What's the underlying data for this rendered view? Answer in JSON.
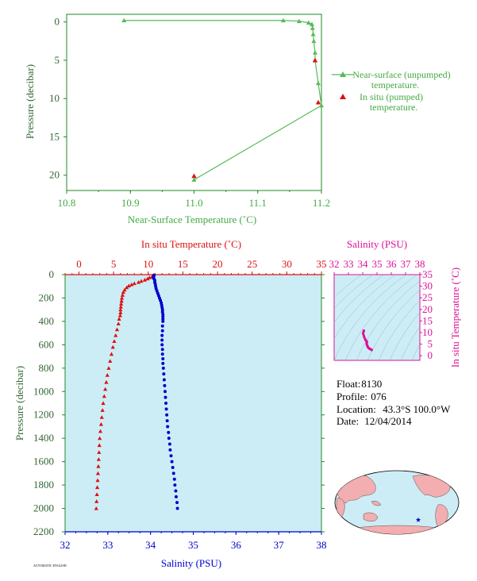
{
  "float_info": {
    "float_label": "Float:",
    "float_value": "8130",
    "profile_label": "Profile:",
    "profile_value": "076",
    "location_label": "Location:",
    "location_value": "43.3°S 100.0°W",
    "date_label": "Date:",
    "date_value": "12/04/2014"
  },
  "footer_note": "AUTOMATIC ENGLISH",
  "colors": {
    "green": "#55bb55",
    "green_text": "#44aa44",
    "red": "#dd1111",
    "blue": "#0000cc",
    "magenta": "#dd1199",
    "panel_bg": "#cdedf6",
    "axis": "#228822",
    "dark_green": "#336633"
  },
  "chart_data": [
    {
      "type": "line",
      "xlabel": "Near-Surface Temperature (˚C)",
      "ylabel": "Pressure (decibar)",
      "xlim": [
        10.8,
        11.2
      ],
      "ylim": [
        22,
        -1
      ],
      "xticks": [
        "10.8",
        "10.9",
        "11.0",
        "11.1",
        "11.2"
      ],
      "yticks": [
        "0",
        "5",
        "10",
        "15",
        "20"
      ],
      "legend": [
        "Near-surface (unpumped)",
        "temperature.",
        "In situ (pumped)",
        "temperature."
      ],
      "series": [
        {
          "name": "Near-surface (unpumped) temperature.",
          "x": [
            10.89,
            11.14,
            11.165,
            11.18,
            11.185,
            11.186,
            11.187,
            11.188,
            11.19,
            11.19,
            11.195,
            11.2,
            11.0
          ],
          "y": [
            -0.2,
            -0.2,
            -0.1,
            0.1,
            0.3,
            0.8,
            1.6,
            2.5,
            4.0,
            5.0,
            8.0,
            10.9,
            20.6
          ]
        },
        {
          "name": "In situ (pumped) temperature.",
          "x": [
            11.19,
            11.195,
            11.0
          ],
          "y": [
            5.0,
            10.5,
            20.1
          ]
        }
      ]
    },
    {
      "type": "scatter",
      "top_xlabel": "In situ Temperature (˚C)",
      "bottom_xlabel": "Salinity (PSU)",
      "ylabel": "Pressure (decibar)",
      "temperature_xlim": [
        -2,
        35
      ],
      "salinity_xlim": [
        32,
        38
      ],
      "ylim": [
        2200,
        0
      ],
      "temperature_ticks": [
        "0",
        "5",
        "10",
        "15",
        "20",
        "25",
        "30",
        "35"
      ],
      "salinity_ticks": [
        "32",
        "33",
        "34",
        "35",
        "36",
        "37",
        "38"
      ],
      "pressure_ticks": [
        "0",
        "200",
        "400",
        "600",
        "800",
        "1000",
        "1200",
        "1400",
        "1600",
        "1800",
        "2000",
        "2200"
      ],
      "temperature_profile": {
        "pressure": [
          5,
          15,
          25,
          35,
          45,
          55,
          65,
          75,
          85,
          95,
          110,
          130,
          150,
          175,
          200,
          225,
          250,
          275,
          300,
          325,
          350,
          380,
          420,
          470,
          520,
          570,
          620,
          680,
          740,
          800,
          860,
          920,
          980,
          1040,
          1100,
          1160,
          1220,
          1280,
          1340,
          1400,
          1460,
          1520,
          1580,
          1640,
          1700,
          1760,
          1820,
          1880,
          1940,
          2000
        ],
        "temperature": [
          10.8,
          10.6,
          10.2,
          9.9,
          9.5,
          9.0,
          8.6,
          8.0,
          7.6,
          7.2,
          6.9,
          6.6,
          6.4,
          6.3,
          6.2,
          6.15,
          6.1,
          6.05,
          6.0,
          6.0,
          5.95,
          5.8,
          5.7,
          5.5,
          5.3,
          5.1,
          4.9,
          4.7,
          4.5,
          4.3,
          4.1,
          3.95,
          3.8,
          3.65,
          3.5,
          3.4,
          3.3,
          3.2,
          3.1,
          3.0,
          2.95,
          2.9,
          2.85,
          2.8,
          2.75,
          2.7,
          2.65,
          2.6,
          2.55,
          2.5
        ]
      },
      "salinity_profile": {
        "pressure": [
          5,
          15,
          25,
          35,
          50,
          65,
          80,
          100,
          120,
          140,
          160,
          180,
          200,
          220,
          240,
          260,
          280,
          300,
          320,
          340,
          360,
          380,
          400,
          440,
          480,
          520,
          560,
          600,
          640,
          680,
          720,
          760,
          800,
          850,
          900,
          950,
          1000,
          1050,
          1100,
          1150,
          1200,
          1250,
          1300,
          1350,
          1400,
          1450,
          1500,
          1550,
          1600,
          1650,
          1700,
          1750,
          1800,
          1850,
          1900,
          1950,
          2000
        ],
        "salinity": [
          34.08,
          34.07,
          34.06,
          34.08,
          34.1,
          34.1,
          34.11,
          34.12,
          34.13,
          34.15,
          34.17,
          34.19,
          34.21,
          34.23,
          34.25,
          34.26,
          34.27,
          34.28,
          34.28,
          34.29,
          34.29,
          34.29,
          34.29,
          34.28,
          34.28,
          34.27,
          34.27,
          34.27,
          34.28,
          34.28,
          34.29,
          34.29,
          34.3,
          34.31,
          34.32,
          34.33,
          34.34,
          34.35,
          34.36,
          34.37,
          34.38,
          34.39,
          34.4,
          34.42,
          34.43,
          34.45,
          34.46,
          34.48,
          34.5,
          34.52,
          34.54,
          34.56,
          34.57,
          34.59,
          34.6,
          34.62,
          34.63
        ]
      }
    },
    {
      "type": "scatter",
      "title": "Salinity (PSU)",
      "xlabel": "Salinity (PSU)",
      "ylabel": "In situ Temperature (˚C)",
      "xlim": [
        32,
        38
      ],
      "ylim": [
        -2,
        35
      ],
      "xticks": [
        "32",
        "33",
        "34",
        "35",
        "36",
        "37",
        "38"
      ],
      "yticks": [
        "0",
        "5",
        "10",
        "15",
        "20",
        "25",
        "30",
        "35"
      ],
      "ts_points": {
        "salinity": [
          34.08,
          34.05,
          34.03,
          34.08,
          34.12,
          34.18,
          34.22,
          34.26,
          34.28,
          34.29,
          34.29,
          34.28,
          34.28,
          34.3,
          34.32,
          34.35,
          34.38,
          34.42,
          34.46,
          34.52,
          34.58,
          34.63
        ],
        "temperature": [
          10.8,
          10.2,
          9.5,
          8.6,
          7.8,
          7.0,
          6.6,
          6.3,
          6.1,
          6.0,
          5.8,
          5.5,
          5.1,
          4.7,
          4.3,
          3.9,
          3.6,
          3.3,
          3.1,
          2.9,
          2.7,
          2.5
        ]
      }
    }
  ]
}
